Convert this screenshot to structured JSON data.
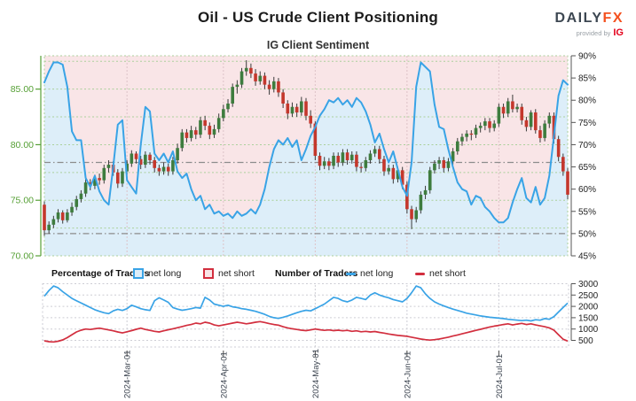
{
  "header": {
    "title": "Oil - US Crude Client Positioning",
    "subtitle": "IG Client Sentiment",
    "logo": {
      "brand": "DAILY",
      "brand_accent": "FX",
      "provided_by": "provided by",
      "provider": "IG"
    }
  },
  "legend": {
    "percentage_of_traders": "Percentage of Traders",
    "pct_net_long": "net long",
    "pct_net_short": "net short",
    "number_of_traders": "Number of Traders",
    "num_net_long": "net long",
    "num_net_short": "net short"
  },
  "colors": {
    "sentiment_blue": "#39a3e6",
    "net_short_red": "#d22e3e",
    "candle_up": "#3e7c3e",
    "candle_down": "#c4372c",
    "wick": "#3a3a3a",
    "fill_above": "#f9e5e7",
    "fill_below": "#ddeef9",
    "price_axis_green": "#56a036",
    "grid_green": "#abd09b",
    "grid_month_main": "#ddc2c7",
    "grid_gray": "#cdcdd4",
    "refline_gray": "#8c8c8c",
    "axis_dark": "#222222",
    "xlabel_color": "#3c4450"
  },
  "chart_data": [
    {
      "type": "candlestick",
      "title": "IG Client Sentiment",
      "description": "Daily US Crude price candles with IG client sentiment (% net long) overlay, Feb-Jul 2024",
      "price_axis": {
        "side": "left",
        "range": [
          70,
          88
        ],
        "ticks": [
          70,
          75,
          80,
          85
        ],
        "tick_labels": [
          "70.00",
          "75.00",
          "80.00",
          "85.00"
        ],
        "grid_step": 2.5
      },
      "sentiment_axis": {
        "side": "right",
        "range": [
          45,
          90
        ],
        "ticks": [
          45,
          50,
          55,
          60,
          65,
          70,
          75,
          80,
          85,
          90
        ],
        "tick_labels": [
          "45%",
          "50%",
          "55%",
          "60%",
          "65%",
          "70%",
          "75%",
          "80%",
          "85%",
          "90%"
        ]
      },
      "x_axis": {
        "tick_labels": [
          "2024-Mar-01",
          "2024-Apr-01",
          "2024-May-01",
          "2024-Jun-01",
          "2024-Jul-01"
        ],
        "tick_indices": [
          18,
          39,
          59,
          79,
          99
        ]
      },
      "reference_lines_pct": [
        66,
        50
      ],
      "candles_ohlc": [
        [
          74.6,
          74.9,
          71.8,
          72.3
        ],
        [
          72.3,
          73.1,
          72.0,
          72.8
        ],
        [
          72.8,
          73.6,
          72.5,
          73.3
        ],
        [
          73.3,
          74.2,
          73.0,
          73.9
        ],
        [
          73.9,
          74.1,
          72.9,
          73.2
        ],
        [
          73.2,
          74.2,
          73.0,
          73.9
        ],
        [
          73.9,
          74.8,
          73.6,
          74.4
        ],
        [
          74.4,
          75.4,
          74.1,
          75.1
        ],
        [
          75.1,
          75.9,
          74.8,
          75.6
        ],
        [
          75.6,
          76.9,
          75.3,
          76.6
        ],
        [
          76.6,
          76.9,
          75.9,
          76.3
        ],
        [
          76.3,
          77.3,
          76.0,
          77.0
        ],
        [
          77.0,
          77.4,
          76.4,
          76.8
        ],
        [
          76.8,
          78.2,
          76.5,
          77.9
        ],
        [
          77.9,
          78.6,
          77.5,
          78.2
        ],
        [
          78.2,
          78.5,
          77.2,
          77.5
        ],
        [
          77.5,
          77.8,
          76.1,
          76.5
        ],
        [
          76.5,
          77.9,
          76.2,
          77.6
        ],
        [
          77.6,
          78.6,
          77.3,
          78.3
        ],
        [
          78.3,
          79.5,
          78.0,
          79.2
        ],
        [
          79.2,
          79.4,
          78.3,
          78.7
        ],
        [
          78.7,
          79.0,
          77.8,
          78.2
        ],
        [
          78.2,
          79.4,
          77.9,
          79.1
        ],
        [
          79.1,
          79.3,
          78.2,
          78.6
        ],
        [
          78.6,
          78.9,
          77.5,
          77.9
        ],
        [
          77.9,
          78.2,
          77.2,
          77.6
        ],
        [
          77.6,
          78.4,
          77.3,
          78.0
        ],
        [
          78.0,
          78.3,
          77.2,
          77.6
        ],
        [
          77.6,
          78.9,
          77.3,
          78.6
        ],
        [
          78.6,
          80.1,
          78.3,
          79.7
        ],
        [
          79.7,
          81.4,
          79.4,
          81.1
        ],
        [
          81.1,
          81.4,
          80.2,
          80.6
        ],
        [
          80.6,
          81.7,
          80.3,
          81.3
        ],
        [
          81.3,
          81.6,
          80.5,
          80.9
        ],
        [
          80.9,
          82.5,
          80.6,
          82.2
        ],
        [
          82.2,
          82.6,
          81.3,
          81.7
        ],
        [
          81.7,
          82.0,
          80.5,
          80.9
        ],
        [
          80.9,
          81.8,
          80.6,
          81.4
        ],
        [
          81.4,
          82.8,
          81.1,
          82.4
        ],
        [
          82.4,
          83.6,
          82.1,
          83.2
        ],
        [
          83.2,
          84.1,
          82.9,
          83.7
        ],
        [
          83.7,
          85.5,
          83.4,
          85.2
        ],
        [
          85.2,
          85.8,
          84.6,
          85.4
        ],
        [
          85.4,
          86.9,
          85.1,
          86.6
        ],
        [
          86.6,
          87.6,
          86.2,
          86.9
        ],
        [
          86.9,
          87.3,
          86.0,
          86.4
        ],
        [
          86.4,
          86.8,
          85.3,
          85.7
        ],
        [
          85.7,
          86.6,
          85.4,
          86.2
        ],
        [
          86.2,
          86.5,
          85.0,
          85.4
        ],
        [
          85.4,
          85.8,
          84.5,
          85.0
        ],
        [
          85.0,
          86.1,
          84.7,
          85.7
        ],
        [
          85.7,
          86.0,
          84.3,
          84.7
        ],
        [
          84.7,
          85.0,
          83.3,
          83.7
        ],
        [
          83.7,
          84.0,
          82.3,
          82.8
        ],
        [
          82.8,
          83.8,
          82.5,
          83.4
        ],
        [
          83.4,
          83.7,
          82.5,
          82.9
        ],
        [
          82.9,
          84.3,
          82.6,
          83.9
        ],
        [
          83.9,
          84.2,
          82.2,
          82.6
        ],
        [
          82.6,
          83.1,
          81.5,
          81.9
        ],
        [
          81.9,
          82.1,
          78.6,
          79.0
        ],
        [
          79.0,
          79.3,
          77.7,
          78.1
        ],
        [
          78.1,
          78.9,
          77.8,
          78.5
        ],
        [
          78.5,
          78.8,
          77.7,
          78.1
        ],
        [
          78.1,
          79.3,
          77.8,
          79.0
        ],
        [
          79.0,
          79.3,
          78.0,
          78.4
        ],
        [
          78.4,
          79.6,
          78.1,
          79.3
        ],
        [
          79.3,
          79.6,
          78.2,
          78.6
        ],
        [
          78.6,
          79.4,
          78.3,
          79.1
        ],
        [
          79.1,
          79.4,
          77.6,
          78.0
        ],
        [
          78.0,
          78.4,
          77.5,
          77.9
        ],
        [
          77.9,
          78.9,
          77.6,
          78.6
        ],
        [
          78.6,
          79.5,
          78.3,
          79.2
        ],
        [
          79.2,
          79.9,
          78.9,
          79.6
        ],
        [
          79.6,
          79.9,
          78.3,
          78.7
        ],
        [
          78.7,
          79.0,
          77.2,
          77.6
        ],
        [
          77.6,
          78.2,
          77.3,
          77.9
        ],
        [
          77.9,
          78.2,
          76.5,
          76.9
        ],
        [
          76.9,
          78.0,
          76.6,
          77.7
        ],
        [
          77.7,
          78.0,
          76.0,
          76.4
        ],
        [
          76.4,
          76.7,
          73.8,
          74.2
        ],
        [
          74.2,
          74.5,
          72.4,
          73.3
        ],
        [
          73.3,
          74.4,
          73.0,
          74.1
        ],
        [
          74.1,
          75.8,
          73.8,
          75.5
        ],
        [
          75.5,
          76.3,
          75.1,
          75.9
        ],
        [
          75.9,
          78.0,
          75.6,
          77.7
        ],
        [
          77.7,
          78.6,
          77.4,
          78.3
        ],
        [
          78.3,
          78.9,
          77.8,
          78.6
        ],
        [
          78.6,
          78.9,
          77.5,
          77.9
        ],
        [
          77.9,
          78.8,
          77.6,
          78.5
        ],
        [
          78.5,
          79.7,
          78.2,
          79.4
        ],
        [
          79.4,
          80.6,
          79.1,
          80.3
        ],
        [
          80.3,
          81.0,
          79.9,
          80.7
        ],
        [
          80.7,
          81.3,
          80.3,
          81.0
        ],
        [
          81.0,
          81.3,
          80.4,
          80.9
        ],
        [
          80.9,
          81.8,
          80.6,
          81.5
        ],
        [
          81.5,
          82.0,
          81.1,
          81.7
        ],
        [
          81.7,
          82.4,
          81.3,
          82.1
        ],
        [
          82.1,
          82.4,
          81.1,
          81.5
        ],
        [
          81.5,
          82.2,
          81.2,
          81.9
        ],
        [
          81.9,
          83.7,
          81.6,
          83.4
        ],
        [
          83.4,
          83.7,
          82.4,
          82.8
        ],
        [
          82.8,
          84.2,
          82.5,
          83.9
        ],
        [
          83.9,
          84.5,
          82.9,
          83.2
        ],
        [
          83.2,
          83.7,
          82.9,
          83.4
        ],
        [
          83.4,
          83.7,
          81.8,
          82.2
        ],
        [
          82.2,
          82.5,
          81.2,
          81.6
        ],
        [
          81.6,
          83.1,
          81.3,
          82.9
        ],
        [
          82.9,
          83.2,
          81.0,
          81.3
        ],
        [
          81.3,
          81.7,
          80.2,
          80.6
        ],
        [
          80.6,
          82.2,
          80.3,
          81.9
        ],
        [
          81.9,
          82.9,
          81.5,
          82.6
        ],
        [
          82.6,
          82.9,
          80.1,
          80.5
        ],
        [
          80.5,
          80.8,
          78.5,
          78.9
        ],
        [
          78.9,
          79.2,
          77.2,
          77.6
        ],
        [
          77.6,
          77.9,
          75.1,
          75.5
        ]
      ],
      "sentiment_pct": [
        84,
        86.5,
        88.5,
        88.5,
        88,
        83,
        73,
        71,
        71,
        62.5,
        60.5,
        63,
        59.5,
        57.5,
        56.5,
        65,
        74.5,
        75.5,
        62,
        60.5,
        59,
        70,
        78.5,
        77.5,
        68,
        66.5,
        68,
        66,
        68.5,
        64,
        62.5,
        63.5,
        60,
        57.5,
        58.5,
        55.5,
        56.5,
        54.5,
        55,
        54,
        54.5,
        53.5,
        55,
        54,
        54.5,
        55.5,
        54.5,
        56.5,
        60,
        65,
        69,
        71,
        70,
        71.5,
        69.5,
        71,
        66.5,
        69,
        72,
        74,
        76.5,
        78,
        80,
        79.5,
        80.5,
        79,
        80,
        78.5,
        80.5,
        79.5,
        77.5,
        74.5,
        70.5,
        72.5,
        69,
        66,
        68.5,
        64.5,
        60.5,
        58.5,
        66,
        83,
        88.5,
        87.5,
        86.5,
        79,
        74,
        73.5,
        69,
        65,
        61.5,
        60,
        59.5,
        56.5,
        58.5,
        58,
        56,
        55,
        53.5,
        52.5,
        52.5,
        53.5,
        57,
        60,
        62.5,
        58,
        57,
        60.5,
        56.5,
        58,
        63,
        72,
        81,
        84.5,
        83.5
      ]
    },
    {
      "type": "line",
      "title": "Number of Traders",
      "value_axis": {
        "side": "right",
        "range": [
          200,
          2900
        ],
        "ticks": [
          500,
          1000,
          1500,
          2000,
          2500,
          3000
        ],
        "tick_labels": [
          "500",
          "1000",
          "1500",
          "2000",
          "2500",
          "3000"
        ]
      },
      "series": [
        {
          "name": "net long",
          "color": "#39a3e6",
          "values": [
            2450,
            2700,
            2900,
            2820,
            2650,
            2500,
            2350,
            2250,
            2150,
            2050,
            1950,
            1850,
            1780,
            1720,
            1680,
            1800,
            1870,
            1820,
            1900,
            2050,
            1980,
            1900,
            1850,
            1820,
            2250,
            2380,
            2280,
            2180,
            1950,
            1880,
            1830,
            1860,
            1900,
            1950,
            1920,
            2400,
            2280,
            2100,
            2050,
            2000,
            2050,
            1980,
            1950,
            1900,
            1870,
            1830,
            1780,
            1720,
            1650,
            1560,
            1500,
            1470,
            1520,
            1580,
            1650,
            1720,
            1780,
            1830,
            1800,
            1900,
            2000,
            2100,
            2250,
            2400,
            2350,
            2250,
            2200,
            2280,
            2400,
            2350,
            2300,
            2500,
            2600,
            2500,
            2430,
            2380,
            2300,
            2250,
            2200,
            2350,
            2600,
            2900,
            2820,
            2550,
            2350,
            2200,
            2100,
            2020,
            1950,
            1880,
            1820,
            1760,
            1700,
            1660,
            1620,
            1580,
            1550,
            1520,
            1500,
            1480,
            1460,
            1430,
            1410,
            1390,
            1370,
            1390,
            1360,
            1410,
            1390,
            1460,
            1430,
            1550,
            1750,
            1950,
            2150
          ]
        },
        {
          "name": "net short",
          "color": "#d22e3e",
          "values": [
            480,
            440,
            430,
            460,
            520,
            620,
            750,
            870,
            950,
            1000,
            980,
            1010,
            1040,
            1000,
            960,
            920,
            870,
            830,
            880,
            930,
            990,
            1040,
            980,
            940,
            900,
            870,
            920,
            970,
            1010,
            1060,
            1110,
            1160,
            1200,
            1260,
            1230,
            1300,
            1260,
            1180,
            1140,
            1180,
            1220,
            1260,
            1300,
            1270,
            1230,
            1260,
            1300,
            1330,
            1290,
            1240,
            1200,
            1170,
            1100,
            1050,
            1010,
            980,
            950,
            930,
            960,
            1000,
            970,
            940,
            960,
            930,
            950,
            920,
            940,
            900,
            920,
            880,
            900,
            870,
            890,
            850,
            820,
            780,
            750,
            720,
            700,
            680,
            640,
            600,
            560,
            530,
            510,
            530,
            560,
            600,
            640,
            690,
            740,
            790,
            840,
            890,
            940,
            990,
            1040,
            1090,
            1130,
            1160,
            1200,
            1230,
            1180,
            1220,
            1250,
            1200,
            1230,
            1180,
            1140,
            1100,
            1050,
            950,
            750,
            550,
            470
          ]
        }
      ]
    }
  ]
}
